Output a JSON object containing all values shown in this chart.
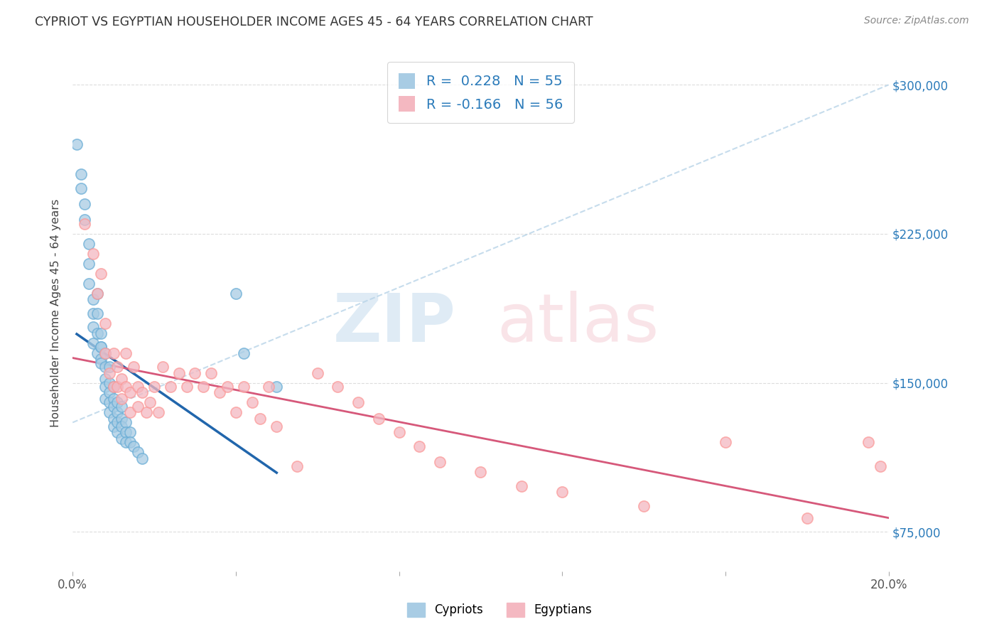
{
  "title": "CYPRIOT VS EGYPTIAN HOUSEHOLDER INCOME AGES 45 - 64 YEARS CORRELATION CHART",
  "source": "Source: ZipAtlas.com",
  "ylabel": "Householder Income Ages 45 - 64 years",
  "xlim": [
    0.0,
    0.2
  ],
  "ylim": [
    55000,
    315000
  ],
  "ytick_positions": [
    75000,
    150000,
    225000,
    300000
  ],
  "ytick_labels": [
    "$75,000",
    "$150,000",
    "$225,000",
    "$300,000"
  ],
  "cypriot_color": "#a8cce4",
  "egyptian_color": "#f4b8c1",
  "cypriot_edge_color": "#6baed6",
  "egyptian_edge_color": "#fb9a99",
  "cypriot_line_color": "#2166ac",
  "egyptian_line_color": "#d6587a",
  "diagonal_color": "#b8d4e8",
  "R_cypriot": 0.228,
  "N_cypriot": 55,
  "R_egyptian": -0.166,
  "N_egyptian": 56,
  "cypriot_points_x": [
    0.001,
    0.002,
    0.002,
    0.003,
    0.003,
    0.004,
    0.004,
    0.004,
    0.005,
    0.005,
    0.005,
    0.005,
    0.006,
    0.006,
    0.006,
    0.006,
    0.007,
    0.007,
    0.007,
    0.007,
    0.007,
    0.008,
    0.008,
    0.008,
    0.008,
    0.008,
    0.009,
    0.009,
    0.009,
    0.009,
    0.009,
    0.01,
    0.01,
    0.01,
    0.01,
    0.01,
    0.011,
    0.011,
    0.011,
    0.011,
    0.012,
    0.012,
    0.012,
    0.012,
    0.013,
    0.013,
    0.013,
    0.014,
    0.014,
    0.015,
    0.016,
    0.017,
    0.04,
    0.042,
    0.05
  ],
  "cypriot_points_y": [
    270000,
    255000,
    248000,
    240000,
    232000,
    220000,
    210000,
    200000,
    192000,
    185000,
    178000,
    170000,
    165000,
    195000,
    185000,
    175000,
    168000,
    162000,
    175000,
    168000,
    160000,
    165000,
    158000,
    152000,
    148000,
    142000,
    158000,
    150000,
    145000,
    140000,
    135000,
    148000,
    142000,
    138000,
    132000,
    128000,
    140000,
    135000,
    130000,
    125000,
    138000,
    132000,
    128000,
    122000,
    130000,
    125000,
    120000,
    125000,
    120000,
    118000,
    115000,
    112000,
    195000,
    165000,
    148000
  ],
  "egyptian_points_x": [
    0.003,
    0.005,
    0.006,
    0.007,
    0.008,
    0.008,
    0.009,
    0.01,
    0.01,
    0.011,
    0.011,
    0.012,
    0.012,
    0.013,
    0.013,
    0.014,
    0.014,
    0.015,
    0.016,
    0.016,
    0.017,
    0.018,
    0.019,
    0.02,
    0.021,
    0.022,
    0.024,
    0.026,
    0.028,
    0.03,
    0.032,
    0.034,
    0.036,
    0.038,
    0.04,
    0.042,
    0.044,
    0.046,
    0.048,
    0.05,
    0.055,
    0.06,
    0.065,
    0.07,
    0.075,
    0.08,
    0.085,
    0.09,
    0.1,
    0.11,
    0.12,
    0.14,
    0.16,
    0.18,
    0.195,
    0.198
  ],
  "egyptian_points_y": [
    230000,
    215000,
    195000,
    205000,
    180000,
    165000,
    155000,
    165000,
    148000,
    158000,
    148000,
    152000,
    142000,
    165000,
    148000,
    145000,
    135000,
    158000,
    148000,
    138000,
    145000,
    135000,
    140000,
    148000,
    135000,
    158000,
    148000,
    155000,
    148000,
    155000,
    148000,
    155000,
    145000,
    148000,
    135000,
    148000,
    140000,
    132000,
    148000,
    128000,
    108000,
    155000,
    148000,
    140000,
    132000,
    125000,
    118000,
    110000,
    105000,
    98000,
    95000,
    88000,
    120000,
    82000,
    120000,
    108000
  ]
}
